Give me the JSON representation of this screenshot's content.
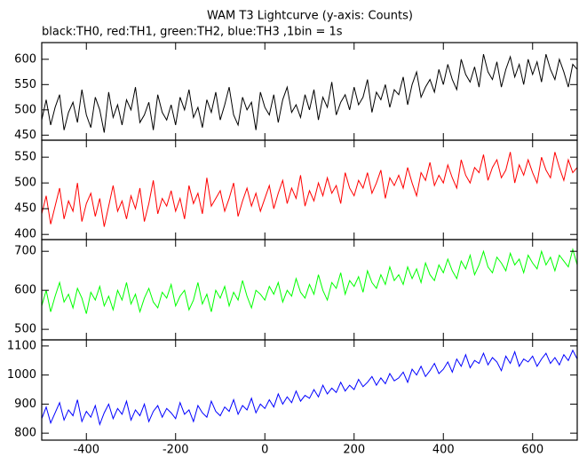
{
  "chart_data": {
    "type": "line",
    "title": "WAM T3 Lightcurve (y-axis: Counts)",
    "subtitle": "black:TH0, red:TH1, green:TH2, blue:TH3 ,1bin = 1s",
    "x": [
      -500,
      -490,
      -480,
      -470,
      -460,
      -450,
      -440,
      -430,
      -420,
      -410,
      -400,
      -390,
      -380,
      -370,
      -360,
      -350,
      -340,
      -330,
      -320,
      -310,
      -300,
      -290,
      -280,
      -270,
      -260,
      -250,
      -240,
      -230,
      -220,
      -210,
      -200,
      -190,
      -180,
      -170,
      -160,
      -150,
      -140,
      -130,
      -120,
      -110,
      -100,
      -90,
      -80,
      -70,
      -60,
      -50,
      -40,
      -30,
      -20,
      -10,
      0,
      10,
      20,
      30,
      40,
      50,
      60,
      70,
      80,
      90,
      100,
      110,
      120,
      130,
      140,
      150,
      160,
      170,
      180,
      190,
      200,
      210,
      220,
      230,
      240,
      250,
      260,
      270,
      280,
      290,
      300,
      310,
      320,
      330,
      340,
      350,
      360,
      370,
      380,
      390,
      400,
      410,
      420,
      430,
      440,
      450,
      460,
      470,
      480,
      490,
      500,
      510,
      520,
      530,
      540,
      550,
      560,
      570,
      580,
      590,
      600,
      610,
      620,
      630,
      640,
      650,
      660,
      670,
      680,
      690,
      700
    ],
    "xlim": [
      -500,
      700
    ],
    "xticks": [
      -400,
      -200,
      0,
      200,
      400,
      600
    ],
    "panels": [
      {
        "color": "#000000",
        "ylim": [
          440,
          633
        ],
        "yticks": [
          450,
          500,
          550,
          600
        ],
        "values": [
          480,
          520,
          470,
          505,
          530,
          460,
          495,
          515,
          475,
          540,
          490,
          465,
          525,
          500,
          455,
          535,
          485,
          510,
          470,
          520,
          500,
          545,
          475,
          490,
          515,
          460,
          530,
          495,
          480,
          510,
          470,
          525,
          500,
          540,
          485,
          505,
          465,
          520,
          495,
          535,
          480,
          510,
          545,
          490,
          470,
          525,
          500,
          515,
          460,
          535,
          505,
          490,
          530,
          475,
          520,
          545,
          495,
          510,
          485,
          530,
          500,
          540,
          480,
          525,
          505,
          555,
          490,
          515,
          530,
          500,
          545,
          510,
          525,
          560,
          495,
          535,
          520,
          550,
          505,
          540,
          530,
          565,
          510,
          550,
          575,
          525,
          545,
          560,
          535,
          580,
          550,
          590,
          560,
          540,
          600,
          570,
          555,
          585,
          545,
          610,
          575,
          560,
          595,
          545,
          580,
          605,
          565,
          590,
          550,
          600,
          570,
          595,
          555,
          610,
          580,
          560,
          600,
          575,
          545,
          590,
          580
        ]
      },
      {
        "color": "#ff0000",
        "ylim": [
          390,
          583
        ],
        "yticks": [
          400,
          450,
          500,
          550
        ],
        "values": [
          440,
          475,
          420,
          455,
          490,
          430,
          465,
          445,
          500,
          425,
          460,
          480,
          435,
          470,
          415,
          455,
          495,
          445,
          465,
          430,
          475,
          450,
          490,
          425,
          460,
          505,
          440,
          470,
          455,
          485,
          445,
          470,
          430,
          495,
          460,
          480,
          440,
          510,
          455,
          470,
          485,
          445,
          470,
          500,
          435,
          465,
          490,
          455,
          480,
          445,
          470,
          495,
          450,
          480,
          505,
          460,
          490,
          470,
          515,
          455,
          485,
          465,
          500,
          475,
          510,
          480,
          495,
          460,
          520,
          490,
          475,
          505,
          490,
          520,
          480,
          500,
          525,
          470,
          510,
          495,
          515,
          490,
          530,
          500,
          475,
          520,
          505,
          540,
          495,
          515,
          500,
          535,
          510,
          490,
          545,
          515,
          500,
          530,
          520,
          555,
          505,
          530,
          545,
          510,
          525,
          560,
          500,
          535,
          515,
          545,
          520,
          500,
          550,
          525,
          510,
          560,
          530,
          505,
          545,
          520,
          530
        ]
      },
      {
        "color": "#00ff00",
        "ylim": [
          473,
          730
        ],
        "yticks": [
          500,
          600,
          700
        ],
        "values": [
          560,
          600,
          545,
          585,
          620,
          570,
          590,
          555,
          605,
          580,
          540,
          595,
          575,
          610,
          560,
          585,
          550,
          600,
          575,
          620,
          565,
          590,
          545,
          580,
          605,
          570,
          555,
          595,
          580,
          615,
          560,
          585,
          600,
          550,
          575,
          620,
          565,
          590,
          545,
          600,
          580,
          610,
          560,
          595,
          575,
          625,
          585,
          555,
          600,
          590,
          575,
          610,
          590,
          620,
          570,
          600,
          585,
          630,
          595,
          580,
          615,
          590,
          640,
          600,
          575,
          620,
          605,
          645,
          590,
          625,
          610,
          635,
          595,
          650,
          620,
          605,
          640,
          615,
          660,
          625,
          640,
          615,
          660,
          630,
          655,
          620,
          670,
          640,
          625,
          665,
          645,
          680,
          650,
          630,
          675,
          655,
          690,
          640,
          665,
          700,
          660,
          645,
          685,
          670,
          650,
          695,
          665,
          680,
          645,
          690,
          670,
          655,
          700,
          665,
          685,
          650,
          690,
          675,
          660,
          705,
          665
        ]
      },
      {
        "color": "#0000ff",
        "ylim": [
          776,
          1121
        ],
        "yticks": [
          800,
          900,
          1000,
          1100
        ],
        "values": [
          850,
          890,
          835,
          870,
          905,
          845,
          880,
          860,
          915,
          840,
          875,
          855,
          895,
          830,
          870,
          900,
          850,
          885,
          865,
          910,
          845,
          880,
          860,
          900,
          840,
          875,
          895,
          855,
          885,
          870,
          850,
          905,
          865,
          880,
          840,
          895,
          870,
          855,
          910,
          875,
          860,
          890,
          875,
          915,
          865,
          895,
          880,
          920,
          870,
          900,
          885,
          915,
          890,
          935,
          900,
          925,
          905,
          945,
          910,
          930,
          920,
          950,
          925,
          965,
          935,
          955,
          940,
          975,
          945,
          965,
          950,
          985,
          960,
          975,
          995,
          965,
          990,
          970,
          1005,
          980,
          990,
          1010,
          975,
          1020,
          1000,
          1030,
          995,
          1015,
          1040,
          1005,
          1020,
          1045,
          1010,
          1055,
          1030,
          1070,
          1025,
          1050,
          1040,
          1075,
          1035,
          1060,
          1045,
          1015,
          1065,
          1040,
          1080,
          1030,
          1055,
          1045,
          1065,
          1030,
          1055,
          1075,
          1040,
          1060,
          1035,
          1070,
          1050,
          1085,
          1055
        ]
      }
    ]
  }
}
